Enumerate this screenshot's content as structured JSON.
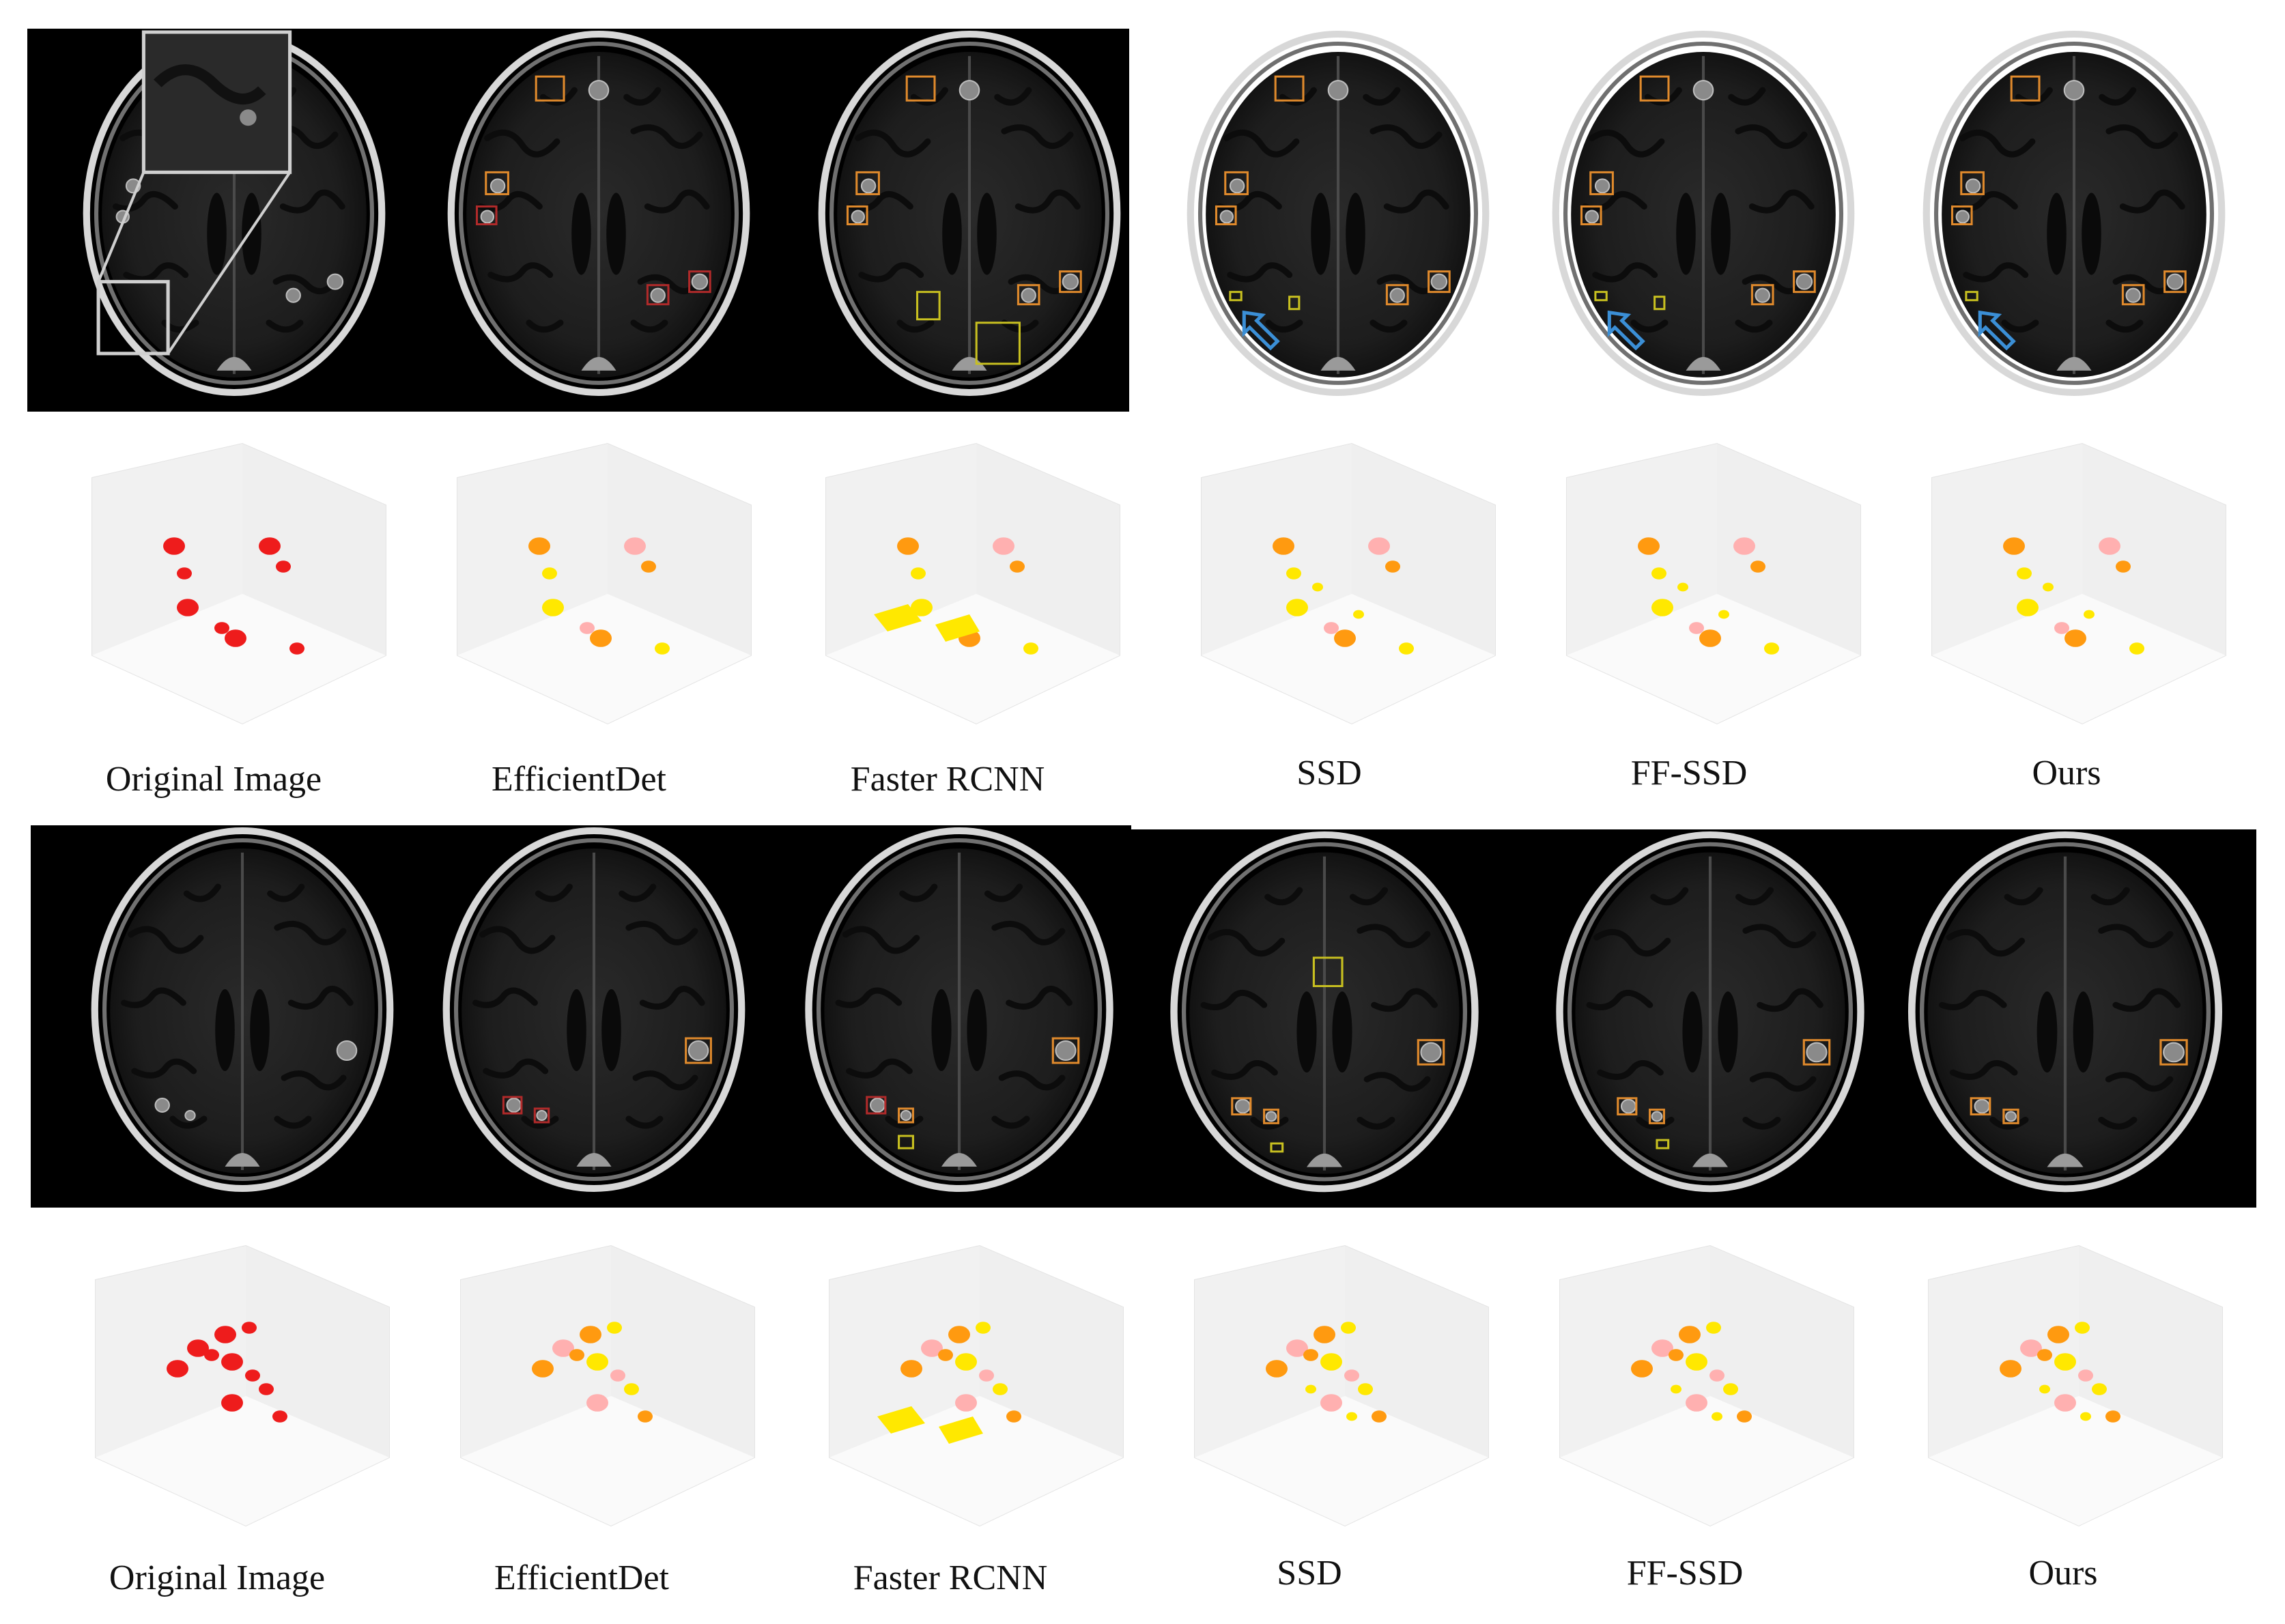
{
  "figure": {
    "row_a": {
      "captions": [
        "Original Image",
        "EfficientDet",
        "Faster RCNN",
        "SSD",
        "FF-SSD",
        "Ours"
      ]
    },
    "row_b": {
      "captions": [
        "Original Image",
        "EfficientDet",
        "Faster RCNN",
        "SSD",
        "FF-SSD",
        "Ours"
      ]
    },
    "colors": {
      "mri_background": "#000000",
      "box_orange": "#e08a2c",
      "box_red": "#b02a2a",
      "box_yellow": "#c8c020",
      "arrow_blue": "#3b8fd6",
      "ground_truth_red": "#ee1c1c",
      "pred_yellow": "#ffe800",
      "pred_orange": "#ff9a10",
      "pred_pink": "#ffb0b0"
    }
  }
}
